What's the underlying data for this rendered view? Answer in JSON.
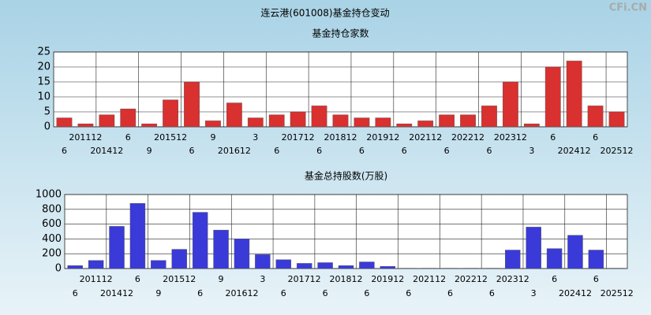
{
  "title": "连云港(601008)基金持仓变动",
  "watermark": "CFi.CN",
  "chart_data": [
    {
      "type": "bar",
      "title": "基金持仓家数",
      "color": "#d93030",
      "categories": [
        "6",
        "201112",
        "201412",
        "6",
        "9",
        "201512",
        "6",
        "9",
        "201612",
        "3",
        "6",
        "201712",
        "6",
        "201812",
        "6",
        "201912",
        "6",
        "202112",
        "6",
        "202212",
        "6",
        "202312",
        "3",
        "6",
        "202412",
        "6",
        "202512"
      ],
      "values": [
        3,
        1,
        4,
        6,
        1,
        9,
        15,
        2,
        8,
        3,
        4,
        5,
        7,
        4,
        3,
        3,
        1,
        2,
        4,
        4,
        7,
        15,
        1,
        20,
        22,
        7,
        5
      ],
      "ylim": [
        0,
        25
      ],
      "yticks": [
        0,
        5,
        10,
        15,
        20,
        25
      ],
      "grid": true
    },
    {
      "type": "bar",
      "title": "基金总持股数(万股)",
      "color": "#3a3ad8",
      "categories": [
        "6",
        "201112",
        "201412",
        "6",
        "9",
        "201512",
        "6",
        "9",
        "201612",
        "3",
        "6",
        "201712",
        "6",
        "201812",
        "6",
        "201912",
        "6",
        "202112",
        "6",
        "202212",
        "6",
        "202312",
        "3",
        "6",
        "202412",
        "6",
        "202512"
      ],
      "values": [
        40,
        110,
        570,
        880,
        110,
        260,
        760,
        520,
        400,
        190,
        120,
        70,
        80,
        40,
        90,
        30,
        5,
        5,
        5,
        5,
        5,
        250,
        560,
        270,
        450,
        250,
        5
      ],
      "ylim": [
        0,
        1000
      ],
      "yticks": [
        0,
        200,
        400,
        600,
        800,
        1000
      ],
      "grid": true
    }
  ]
}
